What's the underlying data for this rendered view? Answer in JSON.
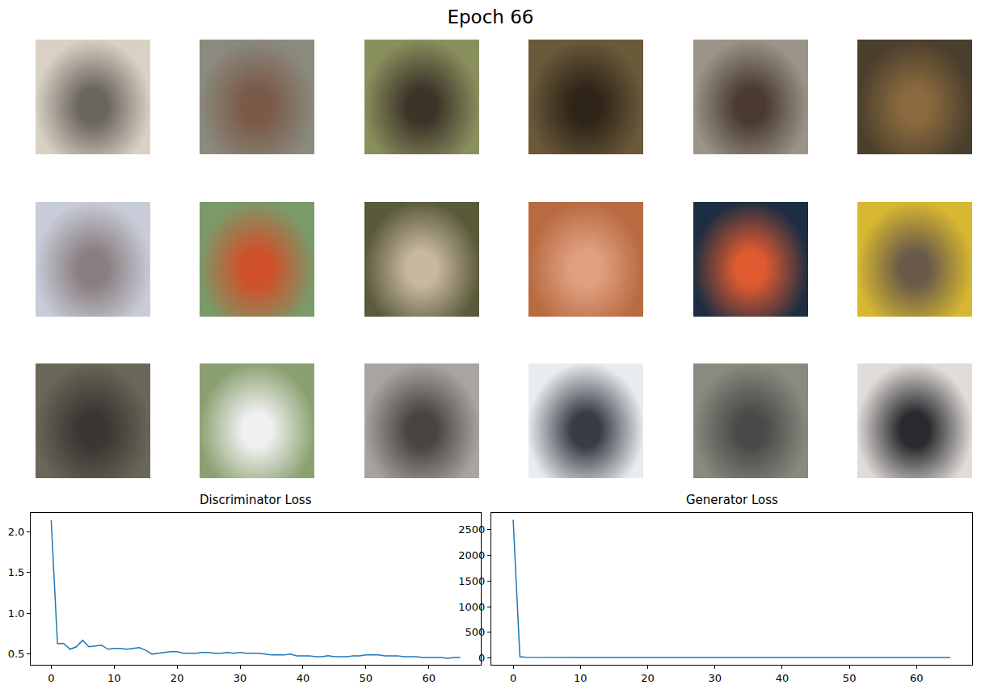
{
  "title": "Epoch 66",
  "samples": {
    "colors": [
      [
        "#d9d2c4",
        "#6b6560"
      ],
      [
        "#8a8a7e",
        "#7a5a48"
      ],
      [
        "#8a8f5e",
        "#3c3428"
      ],
      [
        "#6b5a3a",
        "#2e2418"
      ],
      [
        "#9a9588",
        "#4a3a30"
      ],
      [
        "#4a3e2c",
        "#8a6a3e"
      ],
      [
        "#c8ccd8",
        "#8a7e80"
      ],
      [
        "#7a9a6a",
        "#d0502a"
      ],
      [
        "#5a5a3a",
        "#c8b8a0"
      ],
      [
        "#b86a40",
        "#e0a080"
      ],
      [
        "#1e2e42",
        "#e05a30"
      ],
      [
        "#d8b830",
        "#6a5a4a"
      ],
      [
        "#6a6658",
        "#3a3632"
      ],
      [
        "#8aa070",
        "#f0f0f0"
      ],
      [
        "#a8a4a0",
        "#4a4440"
      ],
      [
        "#e8ecf0",
        "#3a3c44"
      ],
      [
        "#8a8a80",
        "#4a4a48"
      ],
      [
        "#e0dcd8",
        "#2a2a2e"
      ]
    ]
  },
  "chart_data": [
    {
      "type": "line",
      "title": "Discriminator Loss",
      "color": "#1f77b4",
      "x": [
        0,
        1,
        2,
        3,
        4,
        5,
        6,
        7,
        8,
        9,
        10,
        11,
        12,
        13,
        14,
        15,
        16,
        17,
        18,
        19,
        20,
        21,
        22,
        23,
        24,
        25,
        26,
        27,
        28,
        29,
        30,
        31,
        32,
        33,
        34,
        35,
        36,
        37,
        38,
        39,
        40,
        41,
        42,
        43,
        44,
        45,
        46,
        47,
        48,
        49,
        50,
        51,
        52,
        53,
        54,
        55,
        56,
        57,
        58,
        59,
        60,
        61,
        62,
        63,
        64,
        65
      ],
      "values": [
        2.14,
        0.63,
        0.63,
        0.56,
        0.59,
        0.67,
        0.59,
        0.6,
        0.61,
        0.56,
        0.57,
        0.57,
        0.56,
        0.57,
        0.58,
        0.55,
        0.5,
        0.51,
        0.52,
        0.53,
        0.53,
        0.51,
        0.51,
        0.51,
        0.52,
        0.52,
        0.51,
        0.51,
        0.52,
        0.51,
        0.52,
        0.51,
        0.51,
        0.51,
        0.5,
        0.49,
        0.49,
        0.49,
        0.5,
        0.48,
        0.48,
        0.48,
        0.47,
        0.47,
        0.48,
        0.47,
        0.47,
        0.47,
        0.48,
        0.48,
        0.49,
        0.49,
        0.49,
        0.48,
        0.48,
        0.48,
        0.47,
        0.47,
        0.47,
        0.46,
        0.46,
        0.46,
        0.46,
        0.45,
        0.46,
        0.46
      ],
      "xlim": [
        -3.25,
        68.25
      ],
      "xticks": [
        0,
        10,
        20,
        30,
        40,
        50,
        60
      ],
      "ylim": [
        0.37,
        2.23
      ],
      "yticks": [
        0.5,
        {
          "value": 1,
          "label": "1.0"
        },
        1.5,
        {
          "value": 2,
          "label": "2.0"
        }
      ],
      "grid": false
    },
    {
      "type": "line",
      "title": "Generator Loss",
      "color": "#1f77b4",
      "x": [
        0,
        1,
        2,
        3,
        4,
        5,
        6,
        7,
        8,
        9,
        10,
        11,
        12,
        13,
        14,
        15,
        16,
        17,
        18,
        19,
        20,
        21,
        22,
        23,
        24,
        25,
        26,
        27,
        28,
        29,
        30,
        31,
        32,
        33,
        34,
        35,
        36,
        37,
        38,
        39,
        40,
        41,
        42,
        43,
        44,
        45,
        46,
        47,
        48,
        49,
        50,
        51,
        52,
        53,
        54,
        55,
        56,
        57,
        58,
        59,
        60,
        61,
        62,
        63,
        64,
        65
      ],
      "values": [
        2690,
        25,
        14,
        12,
        11,
        11,
        10,
        10,
        10,
        9,
        9,
        9,
        10,
        9,
        9,
        9,
        9,
        10,
        9,
        9,
        9,
        9,
        9,
        9,
        9,
        9,
        9,
        9,
        9,
        9,
        9,
        9,
        9,
        9,
        9,
        9,
        9,
        9,
        9,
        9,
        9,
        9,
        9,
        9,
        9,
        9,
        9,
        9,
        9,
        9,
        9,
        9,
        9,
        9,
        9,
        9,
        9,
        9,
        9,
        9,
        9,
        9,
        9,
        9,
        9,
        9
      ],
      "xlim": [
        -3.25,
        68.25
      ],
      "xticks": [
        0,
        10,
        20,
        30,
        40,
        50,
        60
      ],
      "ylim": [
        -131,
        2824
      ],
      "yticks": [
        0,
        500,
        1000,
        1500,
        2000,
        2500
      ],
      "grid": false
    }
  ]
}
